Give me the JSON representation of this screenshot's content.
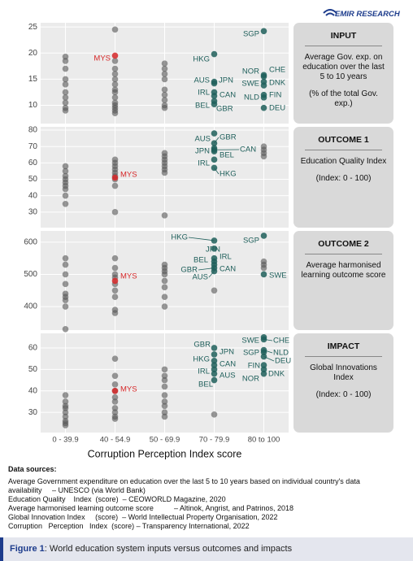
{
  "logo": "EMIR RESEARCH",
  "chart_data": [
    {
      "type": "strip",
      "ylim": [
        6.5,
        25.8
      ],
      "yticks": [
        10,
        15,
        20,
        25
      ],
      "point_color": "#555555",
      "values": [
        [
          19.3,
          18.5,
          17,
          15,
          14,
          12.5,
          11.5,
          10.5,
          9.5,
          9
        ],
        [
          24.5,
          18.5,
          17,
          16,
          15,
          14,
          13,
          12.5,
          11.5,
          10.5,
          10,
          9.5,
          9,
          8.5
        ],
        [
          18,
          17,
          16,
          15,
          13,
          12,
          11,
          10,
          9.5
        ],
        [],
        []
      ],
      "labeled": [
        [],
        [
          {
            "label": "MYS",
            "value": 19.5,
            "color": "#d62728"
          }
        ],
        [],
        [
          {
            "label": "HKG",
            "value": 19.8,
            "color": "#1f5f5b"
          },
          {
            "label": "AUS",
            "value": 14.2,
            "color": "#1f5f5b"
          },
          {
            "label": "JPN",
            "value": 14.5,
            "color": "#1f5f5b"
          },
          {
            "label": "IRL",
            "value": 12.5,
            "color": "#1f5f5b"
          },
          {
            "label": "CAN",
            "value": 11.8,
            "color": "#1f5f5b"
          },
          {
            "label": "BEL",
            "value": 10.8,
            "color": "#1f5f5b"
          },
          {
            "label": "GBR",
            "value": 10.2,
            "color": "#1f5f5b"
          }
        ],
        [
          {
            "label": "SGP",
            "value": 24.2,
            "color": "#1f5f5b"
          },
          {
            "label": "NOR",
            "value": 15.5,
            "color": "#1f5f5b"
          },
          {
            "label": "CHE",
            "value": 15.8,
            "color": "#1f5f5b"
          },
          {
            "label": "SWE",
            "value": 13.8,
            "color": "#1f5f5b"
          },
          {
            "label": "DNK",
            "value": 14.5,
            "color": "#1f5f5b"
          },
          {
            "label": "NLD",
            "value": 11.5,
            "color": "#1f5f5b"
          },
          {
            "label": "FIN",
            "value": 12,
            "color": "#1f5f5b"
          },
          {
            "label": "DEU",
            "value": 9.5,
            "color": "#1f5f5b"
          }
        ]
      ],
      "panel": {
        "title": "INPUT",
        "lines": [
          "Average Gov. exp. on education over the last 5 to 10 years",
          "(% of the total Gov. exp.)"
        ]
      }
    },
    {
      "type": "strip",
      "ylim": [
        20.5,
        82
      ],
      "yticks": [
        30,
        40,
        50,
        60,
        70,
        80
      ],
      "point_color": "#555555",
      "values": [
        [
          58,
          55,
          52,
          50,
          48,
          46,
          44,
          40,
          35
        ],
        [
          62,
          60,
          58,
          56,
          54,
          52,
          50,
          46,
          30
        ],
        [
          66,
          64,
          62,
          60,
          58,
          56,
          54,
          28
        ],
        [],
        [
          70,
          68,
          66,
          64
        ]
      ],
      "labeled": [
        [],
        [
          {
            "label": "MYS",
            "value": 51,
            "color": "#d62728"
          }
        ],
        [],
        [
          {
            "label": "AUS",
            "value": 78,
            "color": "#1f5f5b"
          },
          {
            "label": "GBR",
            "value": 72,
            "color": "#1f5f5b"
          },
          {
            "label": "JPN",
            "value": 69,
            "color": "#1f5f5b"
          },
          {
            "label": "BEL",
            "value": 67,
            "color": "#1f5f5b"
          },
          {
            "label": "CAN",
            "value": 68,
            "color": "#1f5f5b"
          },
          {
            "label": "IRL",
            "value": 62,
            "color": "#1f5f5b"
          },
          {
            "label": "HKG",
            "value": 57,
            "color": "#1f5f5b"
          }
        ],
        []
      ],
      "panel": {
        "title": "OUTCOME 1",
        "lines": [
          "Education Quality Index",
          "(Index: 0  - 100)"
        ]
      }
    },
    {
      "type": "strip",
      "ylim": [
        327,
        635
      ],
      "yticks": [
        400,
        500,
        600
      ],
      "point_color": "#555555",
      "values": [
        [
          550,
          530,
          500,
          470,
          440,
          430,
          420,
          400,
          330
        ],
        [
          550,
          520,
          500,
          490,
          470,
          450,
          430,
          390,
          380
        ],
        [
          530,
          520,
          510,
          500,
          480,
          460,
          430,
          400
        ],
        [
          450
        ],
        [
          540,
          530,
          520
        ]
      ],
      "labeled": [
        [],
        [
          {
            "label": "MYS",
            "value": 480,
            "color": "#d62728"
          }
        ],
        [],
        [
          {
            "label": "HKG",
            "value": 605,
            "color": "#1f5f5b"
          },
          {
            "label": "JPN",
            "value": 580,
            "color": "#1f5f5b"
          },
          {
            "label": "BEL",
            "value": 550,
            "color": "#1f5f5b"
          },
          {
            "label": "IRL",
            "value": 540,
            "color": "#1f5f5b"
          },
          {
            "label": "GBR",
            "value": 520,
            "color": "#1f5f5b"
          },
          {
            "label": "CAN",
            "value": 530,
            "color": "#1f5f5b"
          },
          {
            "label": "AUS",
            "value": 510,
            "color": "#1f5f5b"
          }
        ],
        [
          {
            "label": "SGP",
            "value": 620,
            "color": "#1f5f5b"
          },
          {
            "label": "SWE",
            "value": 500,
            "color": "#1f5f5b"
          }
        ]
      ],
      "panel": {
        "title": "OUTCOME 2",
        "lines": [
          "Average harmonised learning outcome score"
        ]
      }
    },
    {
      "type": "strip",
      "ylim": [
        20.6,
        66.8
      ],
      "yticks": [
        30,
        40,
        50,
        60
      ],
      "point_color": "#555555",
      "categories": [
        "0 - 39.9",
        "40 - 54.9",
        "50 - 69.9",
        "70 - 79.9",
        "80 to 100"
      ],
      "xlabel": "Corruption Perception Index score",
      "values": [
        [
          38,
          35,
          33,
          32,
          30,
          28,
          26,
          25,
          24
        ],
        [
          55,
          47,
          43,
          40,
          37,
          35,
          32,
          30,
          28,
          27
        ],
        [
          50,
          47,
          45,
          42,
          38,
          35,
          33,
          30,
          28
        ],
        [
          29
        ],
        []
      ],
      "labeled": [
        [],
        [
          {
            "label": "MYS",
            "value": 40,
            "color": "#d62728"
          }
        ],
        [],
        [
          {
            "label": "GBR",
            "value": 60,
            "color": "#1f5f5b"
          },
          {
            "label": "JPN",
            "value": 57,
            "color": "#1f5f5b"
          },
          {
            "label": "HKG",
            "value": 54,
            "color": "#1f5f5b"
          },
          {
            "label": "CAN",
            "value": 52,
            "color": "#1f5f5b"
          },
          {
            "label": "IRL",
            "value": 50,
            "color": "#1f5f5b"
          },
          {
            "label": "AUS",
            "value": 48,
            "color": "#1f5f5b"
          },
          {
            "label": "BEL",
            "value": 45,
            "color": "#1f5f5b"
          }
        ],
        [
          {
            "label": "SWE",
            "value": 65,
            "color": "#1f5f5b"
          },
          {
            "label": "CHE",
            "value": 64,
            "color": "#1f5f5b"
          },
          {
            "label": "SGP",
            "value": 58,
            "color": "#1f5f5b"
          },
          {
            "label": "NLD",
            "value": 59,
            "color": "#1f5f5b"
          },
          {
            "label": "DEU",
            "value": 56,
            "color": "#1f5f5b"
          },
          {
            "label": "FIN",
            "value": 52,
            "color": "#1f5f5b"
          },
          {
            "label": "DNK",
            "value": 50,
            "color": "#1f5f5b"
          },
          {
            "label": "NOR",
            "value": 48,
            "color": "#1f5f5b"
          }
        ]
      ],
      "panel": {
        "title": "IMPACT",
        "lines": [
          "Global Innovations Index",
          "(Index: 0  - 100)"
        ]
      }
    }
  ],
  "sources": {
    "heading": "Data sources:",
    "lines": [
      "Average Government expenditure on education over the last 5 to 10 years based on individual country's data availability     – UNESCO (via World Bank)",
      "Education Quality    Index  (score)  – CEOWORLD Magazine, 2020",
      "Average harmonised learning outcome score          – Altinok, Angrist, and Patrinos, 2018",
      "Global Innovation Index     (score)  – World Intellectual Property Organisation, 2022",
      "Corruption   Perception   Index  (score) – Transparency International, 2022"
    ]
  },
  "caption": {
    "label": "Figure 1",
    "text": ": World education system inputs versus outcomes and impacts"
  }
}
